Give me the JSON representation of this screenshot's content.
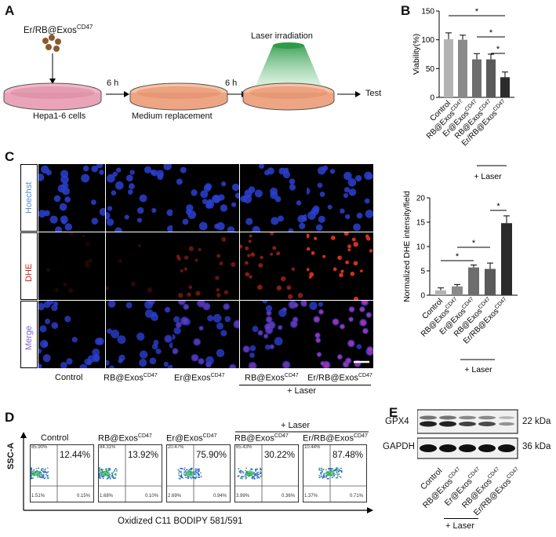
{
  "panelA": {
    "letter": "A",
    "agent": "Er/RB@Exos",
    "agent_sup": "CD47",
    "cells": "Hepa1-6 cells",
    "step1": "6 h",
    "medium": "Medium replacement",
    "step2": "6 h",
    "laser": "Laser irradiation",
    "test": "Test"
  },
  "panelB": {
    "letter": "B",
    "chart_data": {
      "type": "bar",
      "ylabel": "Viability(%)",
      "ylim": [
        0,
        150
      ],
      "yticks": [
        "0",
        "50",
        "100",
        "150"
      ],
      "categories": [
        "Control",
        "RB@Exos",
        "Er@Exos",
        "RB@Exos",
        "Er/RB@Exos"
      ],
      "sup": "CD47",
      "values": [
        101,
        100,
        66,
        66,
        35
      ],
      "errors": [
        11,
        8,
        10,
        9,
        9
      ],
      "colors": [
        "#b3b3b3",
        "#8a8a8a",
        "#6e6e6e",
        "#5a5a5a",
        "#2b2b2b"
      ],
      "significance": [
        "*",
        "*",
        "*"
      ],
      "group_label": "+ Laser"
    }
  },
  "panelC": {
    "letter": "C",
    "rows": [
      "Hoechst",
      "DHE",
      "Merge"
    ],
    "columns": [
      "Control",
      "RB@Exos",
      "Er@Exos",
      "RB@Exos",
      "Er/RB@Exos"
    ],
    "sup": "CD47",
    "group_label": "+ Laser",
    "chart_data": {
      "type": "bar",
      "ylabel": "Normalized DHE intensity/field",
      "ylim": [
        0,
        20
      ],
      "yticks": [
        "0",
        "5",
        "10",
        "15",
        "20"
      ],
      "categories": [
        "Control",
        "RB@Exos",
        "Er@Exos",
        "RB@Exos",
        "Er/RB@Exos"
      ],
      "sup": "CD47",
      "values": [
        1.0,
        1.8,
        5.7,
        5.4,
        14.8
      ],
      "errors": [
        0.5,
        0.4,
        0.5,
        1.2,
        1.5
      ],
      "colors": [
        "#b3b3b3",
        "#8a8a8a",
        "#6e6e6e",
        "#5a5a5a",
        "#2b2b2b"
      ],
      "significance": [
        "*",
        "*",
        "*"
      ],
      "group_label": "+ Laser"
    }
  },
  "panelD": {
    "letter": "D",
    "yaxis": "SSC-A",
    "xaxis": "Oxidized C11 BODIPY 581/591",
    "group_label": "+ Laser",
    "sup": "CD47",
    "plots": [
      {
        "title": "Control",
        "sup": "",
        "pct": "12.44%",
        "ul": "85.90%",
        "ll": "1.51%",
        "lr": "0.15%",
        "ur": ""
      },
      {
        "title": "RB@Exos",
        "sup": "CD47",
        "pct": "13.92%",
        "ul": "84.31%",
        "ll": "1.68%",
        "lr": "0.10%",
        "ur": ""
      },
      {
        "title": "Er@Exos",
        "sup": "CD47",
        "pct": "75.90%",
        "ul": "20.47%",
        "ll": "2.69%",
        "lr": "0.94%",
        "ur": ""
      },
      {
        "title": "RB@Exos",
        "sup": "CD47",
        "pct": "30.22%",
        "ul": "65.43%",
        "ll": "3.99%",
        "lr": "0.36%",
        "ur": ""
      },
      {
        "title": "Er/RB@Exos",
        "sup": "CD47",
        "pct": "87.48%",
        "ul": "10.44%",
        "ll": "1.37%",
        "lr": "0.71%",
        "ur": ""
      }
    ]
  },
  "panelE": {
    "letter": "E",
    "bands": [
      {
        "name": "GPX4",
        "size": "22 kDa"
      },
      {
        "name": "GAPDH",
        "size": "36 kDa"
      }
    ],
    "lanes": [
      "Control",
      "RB@Exos",
      "Er@Exos",
      "RB@Exos",
      "Er/RB@Exos"
    ],
    "sup": "CD47",
    "group_label": "+ Laser"
  }
}
